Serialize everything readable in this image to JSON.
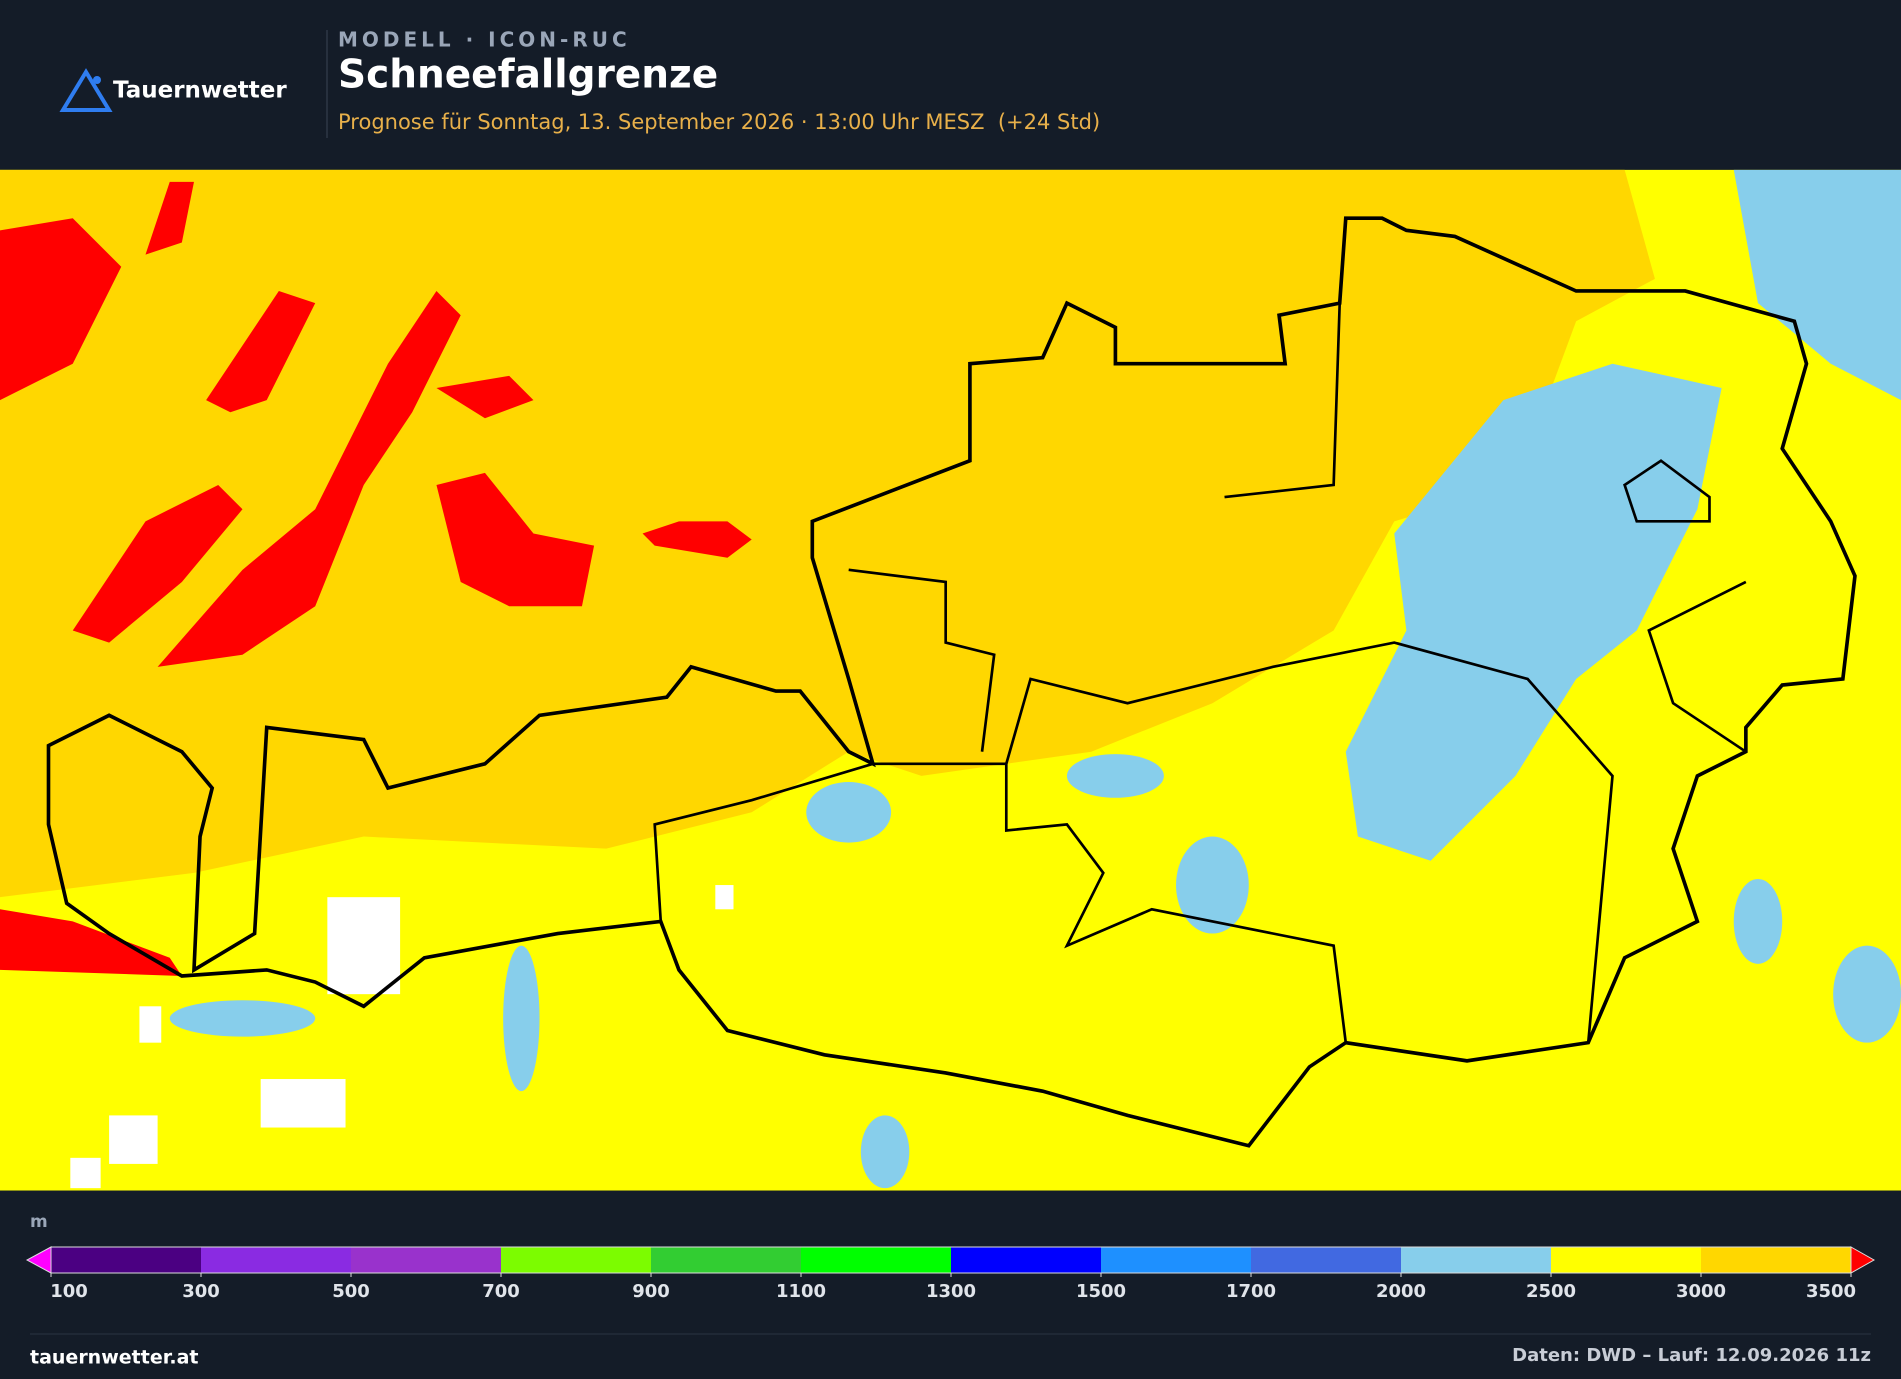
{
  "header": {
    "logo": "Tauernwetter",
    "model": "MODELL · ICON-RUC",
    "title": "Schneefallgrenze",
    "subtitle": "Prognose für Sonntag, 13. September 2026 · 13:00 Uhr MESZ  (+24 Std)"
  },
  "colorbar": {
    "unit": "m",
    "levels": [
      100,
      300,
      500,
      700,
      900,
      1100,
      1300,
      1500,
      1700,
      2000,
      2500,
      3000,
      3500
    ],
    "colors": [
      "#4b0082",
      "#8a2be2",
      "#9932cc",
      "#7cfc00",
      "#32cd32",
      "#00ff00",
      "#0000ff",
      "#1e90ff",
      "#4169e1",
      "#87ceeb",
      "#ffff00",
      "#ffd700"
    ],
    "under_color": "#ff00ff",
    "over_color": "#ff0000"
  },
  "footer": {
    "site": "tauernwetter.at",
    "source": "Daten: DWD – Lauf: 12.09.2026 11z"
  }
}
